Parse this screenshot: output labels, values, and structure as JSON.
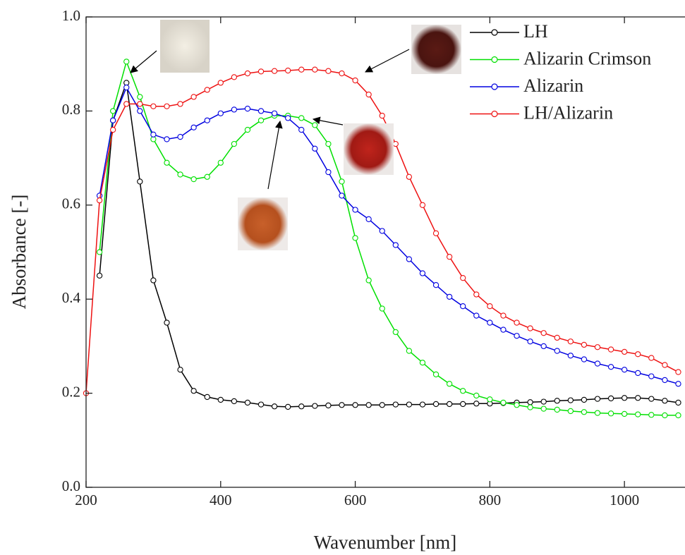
{
  "chart_data": {
    "type": "line",
    "xlabel": "Wavenumber [nm]",
    "ylabel": "Absorbance [-]",
    "x": [
      200,
      220,
      240,
      260,
      280,
      300,
      320,
      340,
      360,
      380,
      400,
      420,
      440,
      460,
      480,
      500,
      520,
      540,
      560,
      580,
      600,
      620,
      640,
      660,
      680,
      700,
      720,
      740,
      760,
      780,
      800,
      820,
      840,
      860,
      880,
      900,
      920,
      940,
      960,
      980,
      1000,
      1020,
      1040,
      1060,
      1080
    ],
    "series": [
      {
        "name": "LH",
        "color": "#000000",
        "values": [
          null,
          0.45,
          0.78,
          0.86,
          0.65,
          0.44,
          0.35,
          0.25,
          0.205,
          0.192,
          0.186,
          0.183,
          0.18,
          0.176,
          0.172,
          0.171,
          0.172,
          0.173,
          0.174,
          0.175,
          0.175,
          0.175,
          0.175,
          0.176,
          0.176,
          0.176,
          0.177,
          0.177,
          0.177,
          0.178,
          0.178,
          0.179,
          0.18,
          0.181,
          0.182,
          0.184,
          0.185,
          0.186,
          0.188,
          0.189,
          0.19,
          0.19,
          0.188,
          0.184,
          0.18
        ]
      },
      {
        "name": "Alizarin Crimson",
        "color": "#00e000",
        "values": [
          null,
          0.5,
          0.8,
          0.905,
          0.83,
          0.74,
          0.69,
          0.665,
          0.655,
          0.66,
          0.69,
          0.73,
          0.76,
          0.78,
          0.79,
          0.79,
          0.785,
          0.77,
          0.73,
          0.65,
          0.53,
          0.44,
          0.38,
          0.33,
          0.29,
          0.265,
          0.24,
          0.22,
          0.205,
          0.195,
          0.187,
          0.18,
          0.175,
          0.17,
          0.167,
          0.165,
          0.162,
          0.16,
          0.158,
          0.157,
          0.156,
          0.155,
          0.154,
          0.153,
          0.153
        ]
      },
      {
        "name": "Alizarin",
        "color": "#0000e0",
        "values": [
          null,
          0.62,
          0.78,
          0.85,
          0.8,
          0.75,
          0.74,
          0.745,
          0.765,
          0.78,
          0.795,
          0.803,
          0.805,
          0.8,
          0.795,
          0.785,
          0.76,
          0.72,
          0.67,
          0.62,
          0.59,
          0.57,
          0.545,
          0.515,
          0.485,
          0.455,
          0.43,
          0.405,
          0.385,
          0.365,
          0.35,
          0.335,
          0.322,
          0.31,
          0.3,
          0.29,
          0.28,
          0.272,
          0.263,
          0.256,
          0.25,
          0.243,
          0.236,
          0.228,
          0.22
        ]
      },
      {
        "name": "LH/Alizarin",
        "color": "#ee1111",
        "values": [
          0.2,
          0.61,
          0.76,
          0.815,
          0.815,
          0.81,
          0.81,
          0.815,
          0.83,
          0.845,
          0.86,
          0.872,
          0.88,
          0.884,
          0.885,
          0.886,
          0.888,
          0.888,
          0.885,
          0.88,
          0.865,
          0.835,
          0.79,
          0.73,
          0.66,
          0.6,
          0.54,
          0.49,
          0.445,
          0.41,
          0.385,
          0.365,
          0.35,
          0.338,
          0.328,
          0.318,
          0.31,
          0.303,
          0.298,
          0.293,
          0.288,
          0.283,
          0.275,
          0.26,
          0.245
        ]
      }
    ],
    "xlim": [
      200,
      1090
    ],
    "xticks": [
      200,
      400,
      600,
      800,
      1000
    ],
    "ylim": [
      0,
      1
    ],
    "yticks": [
      {
        "value": 0,
        "label": "0.0"
      },
      0.2,
      0.4,
      0.6,
      0.8,
      {
        "value": 1,
        "label": "1.0"
      }
    ],
    "legend": "upper right",
    "markers": true
  }
}
